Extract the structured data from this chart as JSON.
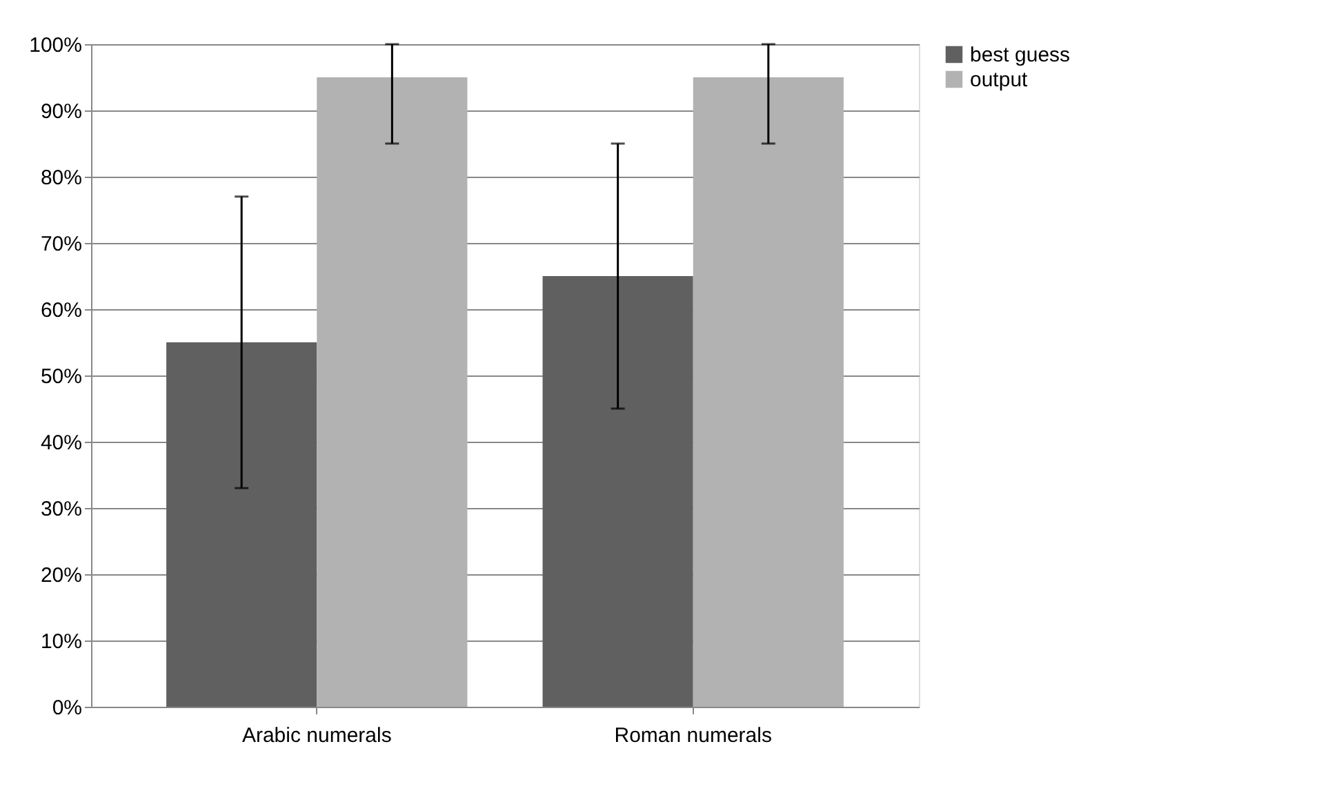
{
  "chart_data": {
    "type": "bar",
    "categories": [
      "Arabic numerals",
      "Roman numerals"
    ],
    "series": [
      {
        "name": "best guess",
        "color": "#606060",
        "values": [
          55,
          65
        ],
        "errors": [
          [
            33,
            77
          ],
          [
            45,
            85
          ]
        ]
      },
      {
        "name": "output",
        "color": "#b2b2b2",
        "values": [
          95,
          95
        ],
        "errors": [
          [
            85,
            100
          ],
          [
            85,
            100
          ]
        ]
      }
    ],
    "ylim": [
      0,
      100
    ],
    "yticks": [
      {
        "value": 0,
        "label": "0%"
      },
      {
        "value": 10,
        "label": "10%"
      },
      {
        "value": 20,
        "label": "20%"
      },
      {
        "value": 30,
        "label": "30%"
      },
      {
        "value": 40,
        "label": "40%"
      },
      {
        "value": 50,
        "label": "50%"
      },
      {
        "value": 60,
        "label": "60%"
      },
      {
        "value": 70,
        "label": "70%"
      },
      {
        "value": 80,
        "label": "80%"
      },
      {
        "value": 90,
        "label": "90%"
      },
      {
        "value": 100,
        "label": "100%"
      }
    ],
    "grid": "y",
    "legend": "right"
  }
}
